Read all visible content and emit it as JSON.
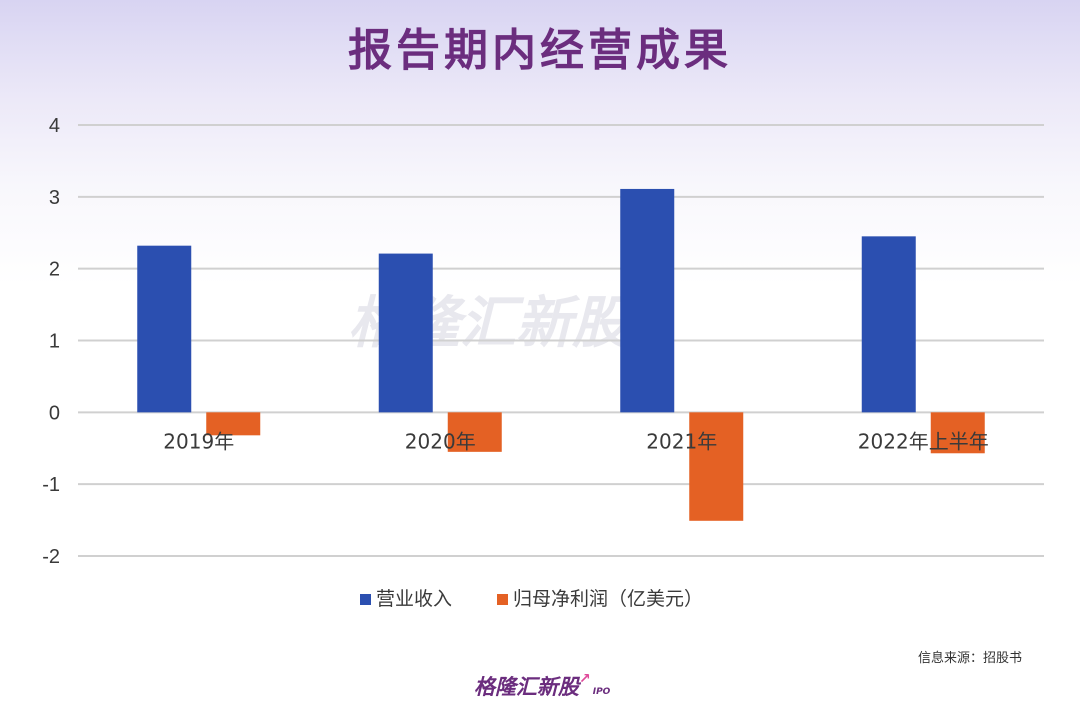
{
  "title": "报告期内经营成果",
  "source": "信息来源：招股书",
  "logo": {
    "text": "格隆汇新股",
    "sub": "IPO"
  },
  "colors": {
    "revenue": "#2b4fb0",
    "profit": "#e46124",
    "title": "#6b2d7e",
    "grid": "#d0d0d0",
    "axis_text": "#3a3a3a"
  },
  "chart_data": {
    "type": "bar",
    "title": "",
    "categories": [
      "2019年",
      "2020年",
      "2021年",
      "2022年上半年"
    ],
    "series": [
      {
        "name": "营业收入",
        "values": [
          2.32,
          2.21,
          3.11,
          2.45
        ]
      },
      {
        "name": "归母净利润（亿美元）",
        "values": [
          -0.32,
          -0.55,
          -1.51,
          -0.57
        ]
      }
    ],
    "yticks": [
      "4",
      "3",
      "2",
      "1",
      "0",
      "-1",
      "-2"
    ],
    "ylim": [
      -2,
      4
    ],
    "grid": true,
    "legend": "bottom"
  }
}
